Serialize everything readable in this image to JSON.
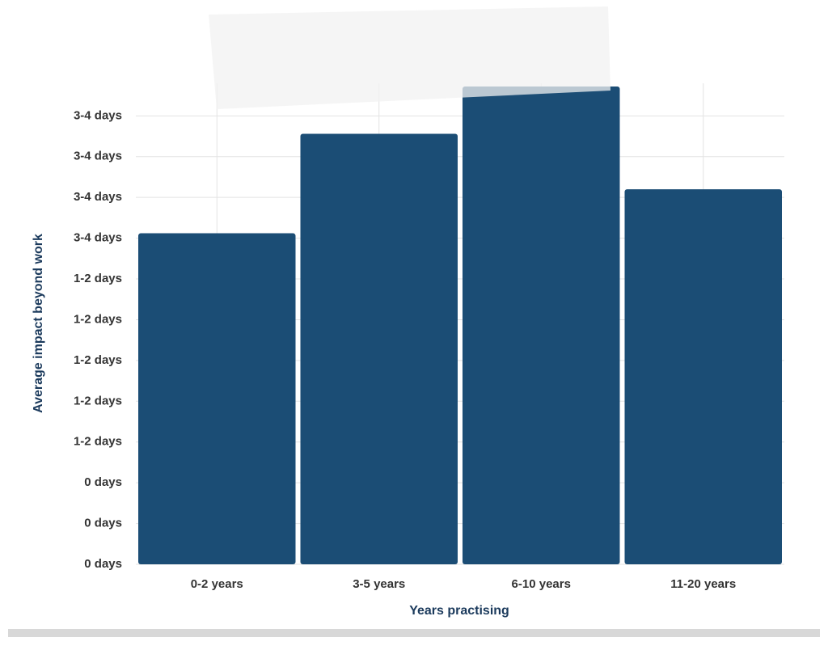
{
  "chart_data": {
    "type": "bar",
    "x_label": "Years practising",
    "y_label": "Average impact beyond work",
    "categories": [
      "0-2 years",
      "3-5 years",
      "6-10 years",
      "11-20 years"
    ],
    "values": [
      2.03,
      2.64,
      2.93,
      2.3
    ],
    "color": "#1b4d75",
    "ylim": [
      0,
      2.95
    ],
    "yticks": [
      {
        "value": 0,
        "label": "0 days"
      },
      {
        "value": 0.25,
        "label": "0 days"
      },
      {
        "value": 0.5,
        "label": "0 days"
      },
      {
        "value": 0.75,
        "label": "1-2 days"
      },
      {
        "value": 1,
        "label": "1-2 days"
      },
      {
        "value": 1.25,
        "label": "1-2 days"
      },
      {
        "value": 1.5,
        "label": "1-2 days"
      },
      {
        "value": 1.75,
        "label": "1-2 days"
      },
      {
        "value": 2,
        "label": "3-4 days"
      },
      {
        "value": 2.25,
        "label": "3-4 days"
      },
      {
        "value": 2.5,
        "label": "3-4 days"
      },
      {
        "value": 2.75,
        "label": "3-4 days"
      }
    ],
    "grid": true
  }
}
